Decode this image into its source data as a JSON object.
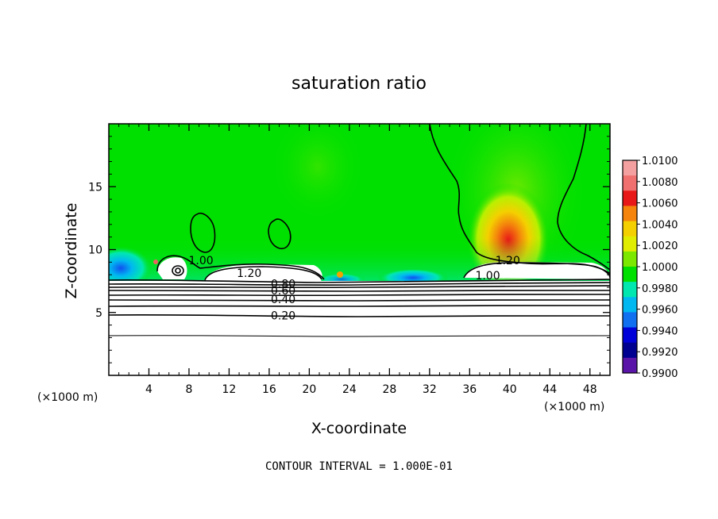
{
  "chart_data": {
    "type": "heatmap",
    "title": "saturation ratio",
    "xlabel": "X-coordinate",
    "ylabel": "Z-coordinate",
    "x_unit": "(×1000 m)",
    "x_ticks": [
      4,
      8,
      12,
      16,
      20,
      24,
      28,
      32,
      36,
      40,
      44,
      48
    ],
    "y_ticks": [
      5,
      10,
      15
    ],
    "xlim": [
      0,
      50
    ],
    "ylim": [
      0,
      20
    ],
    "colorbar": {
      "labels": [
        "1.0100",
        "1.0080",
        "1.0060",
        "1.0040",
        "1.0020",
        "1.0000",
        "0.9980",
        "0.9960",
        "0.9940",
        "0.9920",
        "0.9900"
      ],
      "colors": [
        "#f4a0a0",
        "#f07070",
        "#e81818",
        "#f4840c",
        "#f4d000",
        "#e0ec00",
        "#7ce800",
        "#00e000",
        "#00e8b0",
        "#00b8f0",
        "#1070f0",
        "#0000d8",
        "#000090",
        "#5a14a8"
      ],
      "range": [
        0.99,
        1.01
      ]
    },
    "contour_labels": [
      {
        "text": "1.00",
        "x": 9.2,
        "z": 8.9
      },
      {
        "text": "1.20",
        "x": 14.0,
        "z": 7.9
      },
      {
        "text": "0.80",
        "x": 17.4,
        "z": 7.05
      },
      {
        "text": "0.60",
        "x": 17.4,
        "z": 6.5
      },
      {
        "text": "0.40",
        "x": 17.4,
        "z": 5.8
      },
      {
        "text": "0.20",
        "x": 17.4,
        "z": 4.5
      },
      {
        "text": "1.20",
        "x": 39.8,
        "z": 8.9
      },
      {
        "text": "1.00",
        "x": 37.8,
        "z": 7.7
      }
    ],
    "contour_interval_label": "CONTOUR INTERVAL = 1.000E-01"
  }
}
